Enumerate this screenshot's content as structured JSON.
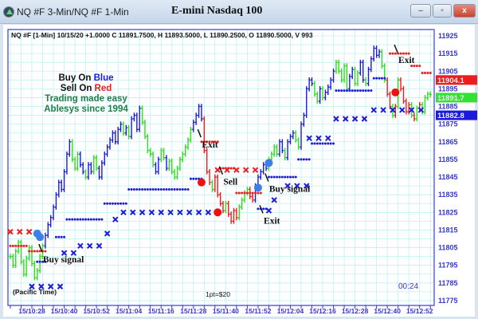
{
  "window": {
    "title": "NQ #F 3-Min/NQ #F 1-Min",
    "chart_title": "E-mini Nasdaq 100",
    "minimize": "–",
    "maximize": "▫",
    "close": "x"
  },
  "header_info": "NQ #F [1-Min] 10/15/20  +1.0000 C 11891.7500, H 11893.5000, L 11890.2500, O 11890.5000, V 993",
  "legend": {
    "buy_prefix": "Buy On ",
    "buy_word": "Blue",
    "sell_prefix": "Sell On ",
    "sell_word": "Red",
    "line3": "Trading made easy",
    "line4": "Ablesys since 1994"
  },
  "footer": {
    "timezone": "(Pacific Time)",
    "point_value": "1pt=$20",
    "countdown": "00:24"
  },
  "colors": {
    "up": "#2adf1f",
    "blue": "#1a1adf",
    "red": "#ee1c1c",
    "grid": "#bff0f5",
    "axis_text": "#3535d0",
    "legend_green": "#1d7f4a"
  },
  "chart_data": {
    "type": "bar",
    "ylim": [
      11775,
      11925
    ],
    "yticks": [
      11925,
      11915,
      11905,
      11895,
      11885,
      11875,
      11865,
      11855,
      11845,
      11835,
      11825,
      11815,
      11805,
      11795,
      11785,
      11775
    ],
    "xticks": [
      "15/10:28",
      "15/10:40",
      "15/10:52",
      "15/11:04",
      "15/11:16",
      "15/11:28",
      "15/11:40",
      "15/11:52",
      "15/12:04",
      "15/12:16",
      "15/12:28",
      "15/12:40",
      "15/12:52"
    ],
    "bars_start": "10:20",
    "closes": [
      11800,
      11795,
      11803,
      11808,
      11797,
      11790,
      11799,
      11805,
      11796,
      11788,
      11792,
      11800,
      11806,
      11812,
      11818,
      11822,
      11828,
      11835,
      11842,
      11838,
      11848,
      11858,
      11865,
      11855,
      11850,
      11858,
      11852,
      11848,
      11845,
      11852,
      11848,
      11856,
      11850,
      11845,
      11853,
      11858,
      11862,
      11866,
      11870,
      11865,
      11872,
      11875,
      11870,
      11873,
      11868,
      11878,
      11880,
      11872,
      11884,
      11876,
      11868,
      11860,
      11858,
      11852,
      11848,
      11855,
      11860,
      11856,
      11850,
      11854,
      11848,
      11845,
      11850,
      11855,
      11858,
      11862,
      11866,
      11872,
      11876,
      11880,
      11885,
      11878,
      11860,
      11848,
      11842,
      11838,
      11845,
      11835,
      11830,
      11826,
      11830,
      11824,
      11820,
      11826,
      11822,
      11828,
      11832,
      11836,
      11838,
      11834,
      11832,
      11840,
      11845,
      11848,
      11852,
      11850,
      11855,
      11858,
      11862,
      11858,
      11865,
      11860,
      11856,
      11865,
      11868,
      11870,
      11866,
      11862,
      11875,
      11880,
      11895,
      11900,
      11898,
      11892,
      11888,
      11895,
      11890,
      11893,
      11896,
      11900,
      11905,
      11910,
      11905,
      11900,
      11908,
      11895,
      11902,
      11906,
      11898,
      11904,
      11910,
      11900,
      11898,
      11906,
      11912,
      11918,
      11914,
      11916,
      11908,
      11900,
      11892,
      11885,
      11880,
      11885,
      11900,
      11895,
      11888,
      11882,
      11886,
      11880,
      11878,
      11884,
      11886,
      11882,
      11890,
      11892,
      11891.75
    ],
    "bar_colors": "gggggggggggggbbbbbbbbbbgggbbgbbggbbbbbbbbbgbgbbbbgggggbbggbgggggggggbbbbrrrgrrrrgrrrrggggrrbbbbbggggbbgbbbggbbbbbggbgbbbbgggggbbggbbgbbbbbggrrgrgrrrrgrgrgggg",
    "blue_dots": [
      [
        "10:30",
        "10:33",
        11797
      ],
      [
        "10:37",
        "10:40",
        11811
      ],
      [
        "10:41",
        "10:54",
        11821
      ],
      [
        "10:55",
        "11:03",
        11830
      ],
      [
        "11:04",
        "11:26",
        11838
      ],
      [
        "11:27",
        "11:31",
        11844
      ],
      [
        "11:52",
        "11:55",
        11827
      ],
      [
        "11:56",
        "12:06",
        11845
      ],
      [
        "12:07",
        "12:11",
        11855
      ],
      [
        "12:12",
        "12:20",
        11864
      ],
      [
        "12:21",
        "12:34",
        11894
      ],
      [
        "12:35",
        "12:39",
        11901
      ]
    ],
    "red_dots": [
      [
        "10:20",
        "10:26",
        11806
      ],
      [
        "10:27",
        "10:33",
        11803
      ],
      [
        "11:31",
        "11:37",
        11865
      ],
      [
        "11:38",
        "11:43",
        11850
      ],
      [
        "11:44",
        "11:53",
        11836
      ],
      [
        "12:41",
        "12:48",
        11915
      ],
      [
        "12:49",
        "12:52",
        11908
      ],
      [
        "12:53",
        "12:56",
        11904
      ]
    ],
    "blue_x": [
      [
        "10:28",
        "10:39",
        11783
      ],
      [
        "10:40",
        "10:45",
        11802
      ],
      [
        "10:46",
        "10:54",
        11806
      ],
      [
        "10:56",
        "10:56",
        11813
      ],
      [
        "10:59",
        "10:59",
        11821
      ],
      [
        "11:02",
        "11:36",
        11825
      ],
      [
        "11:56",
        "11:56",
        11826
      ],
      [
        "11:58",
        "12:00",
        11832
      ],
      [
        "12:03",
        "12:10",
        11840
      ],
      [
        "12:11",
        "12:19",
        11867
      ],
      [
        "12:21",
        "12:34",
        11878
      ],
      [
        "12:35",
        "12:54",
        11883
      ]
    ],
    "red_x": [
      [
        "10:20",
        "10:27",
        11814
      ],
      [
        "11:37",
        "11:53",
        11849
      ]
    ],
    "signals": [
      {
        "time": "10:30",
        "price": 11813,
        "color": "blue"
      },
      {
        "time": "10:31",
        "price": 11811,
        "color": "blue"
      },
      {
        "time": "11:31",
        "price": 11842,
        "color": "red"
      },
      {
        "time": "11:37",
        "price": 11825,
        "color": "red"
      },
      {
        "time": "11:52",
        "price": 11839,
        "color": "blue"
      },
      {
        "time": "11:56",
        "price": 11853,
        "color": "blue"
      },
      {
        "time": "12:43",
        "price": 11893,
        "color": "red"
      }
    ],
    "annotations": [
      {
        "text": "Buy signal",
        "time": "10:33",
        "price": 11798
      },
      {
        "text": "Exit",
        "time": "11:32",
        "price": 11863
      },
      {
        "text": "Sell",
        "time": "11:40",
        "price": 11842
      },
      {
        "text": "Exit",
        "time": "11:55",
        "price": 11820
      },
      {
        "text": "Buy signal",
        "time": "11:57",
        "price": 11838
      },
      {
        "text": "Exit",
        "time": "12:45",
        "price": 11911
      }
    ],
    "price_tags": [
      {
        "text": "11904.1",
        "price": 11904.1,
        "color": "#ee1c1c"
      },
      {
        "text": "11891.7",
        "price": 11891.75,
        "color": "#35e035"
      },
      {
        "text": "11882.8",
        "price": 11882.8,
        "color": "#1a1adf"
      }
    ]
  }
}
